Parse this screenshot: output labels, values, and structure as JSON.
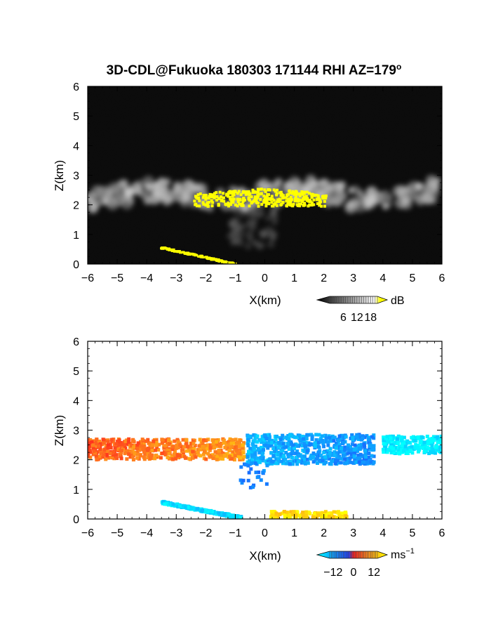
{
  "chart_data": [
    {
      "type": "heatmap",
      "title": "3D-CDL@Fukuoka 180303 171144 RHI AZ=179",
      "title_superscript": "o",
      "xlabel": "X(km)",
      "ylabel": "Z(km)",
      "xlim": [
        -6,
        6
      ],
      "ylim": [
        0,
        6
      ],
      "x_ticks": [
        "−6",
        "−5",
        "−4",
        "−3",
        "−2",
        "−1",
        "0",
        "1",
        "2",
        "3",
        "4",
        "5",
        "6"
      ],
      "y_ticks": [
        "0",
        "1",
        "2",
        "3",
        "4",
        "5",
        "6"
      ],
      "background": "noise (black/dark gray)",
      "colorbar": {
        "unit": "dB",
        "ticks": [
          "6",
          "12",
          "18"
        ],
        "range": [
          0,
          21
        ],
        "colors": [
          "#000000",
          "#ffffff",
          "#ffff00"
        ]
      },
      "features": [
        {
          "name": "cloud layer",
          "x": [
            -6,
            6
          ],
          "z": [
            1.9,
            2.8
          ],
          "value_db": 12
        },
        {
          "name": "strong echo core",
          "x": [
            -2.4,
            2.1
          ],
          "z": [
            1.9,
            2.5
          ],
          "value_db": 19
        },
        {
          "name": "low-level echo",
          "x": [
            -3.5,
            -1.0
          ],
          "z": [
            0.0,
            0.55
          ],
          "value_db": 19
        }
      ]
    },
    {
      "type": "heatmap",
      "xlabel": "X(km)",
      "ylabel": "Z(km)",
      "xlim": [
        -6,
        6
      ],
      "ylim": [
        0,
        6
      ],
      "x_ticks": [
        "−6",
        "−5",
        "−4",
        "−3",
        "−2",
        "−1",
        "0",
        "1",
        "2",
        "3",
        "4",
        "5",
        "6"
      ],
      "y_ticks": [
        "0",
        "1",
        "2",
        "3",
        "4",
        "5",
        "6"
      ],
      "colorbar": {
        "unit": "ms",
        "unit_superscript": "−1",
        "ticks": [
          "−12",
          "0",
          "12"
        ],
        "range": [
          -14,
          14
        ],
        "colors": [
          "#00ffff",
          "#1f3fff",
          "#ff1e1e",
          "#ff8c1e",
          "#ffff00"
        ]
      },
      "features": [
        {
          "name": "cloud layer west",
          "x": [
            -6,
            -0.7
          ],
          "z": [
            2.0,
            2.7
          ],
          "value_ms": 7
        },
        {
          "name": "cloud layer east",
          "x": [
            -0.6,
            3.7
          ],
          "z": [
            1.85,
            2.85
          ],
          "value_ms": -9
        },
        {
          "name": "cloud layer far east",
          "x": [
            4.0,
            6.0
          ],
          "z": [
            2.2,
            2.8
          ],
          "value_ms": -13
        },
        {
          "name": "low-level echo west",
          "x": [
            -3.5,
            -0.8
          ],
          "z": [
            0.0,
            0.55
          ],
          "value_ms": -12
        },
        {
          "name": "low-level echo east",
          "x": [
            0.2,
            2.8
          ],
          "z": [
            0.0,
            0.25
          ],
          "value_ms": 12
        }
      ]
    }
  ]
}
